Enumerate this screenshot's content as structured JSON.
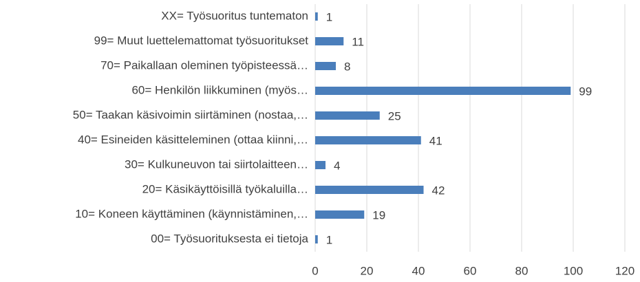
{
  "chart_data": {
    "type": "bar",
    "orientation": "horizontal",
    "categories": [
      "XX= Työsuoritus tuntematon",
      "99= Muut luettelemattomat työsuoritukset",
      "70= Paikallaan oleminen työpisteessä…",
      "60= Henkilön liikkuminen (myös…",
      "50= Taakan käsivoimin siirtäminen (nostaa,…",
      "40= Esineiden käsitteleminen (ottaa kiinni,…",
      "30= Kulkuneuvon tai siirtolaitteen…",
      "20= Käsikäyttöisillä työkaluilla…",
      "10= Koneen käyttäminen (käynnistäminen,…",
      "00= Työsuorituksesta ei tietoja"
    ],
    "values": [
      1,
      11,
      8,
      99,
      25,
      41,
      4,
      42,
      19,
      1
    ],
    "color": "#4a7ebb",
    "xlim": [
      0,
      120
    ],
    "xticks": [
      0,
      20,
      40,
      60,
      80,
      100,
      120
    ],
    "grid": true
  }
}
